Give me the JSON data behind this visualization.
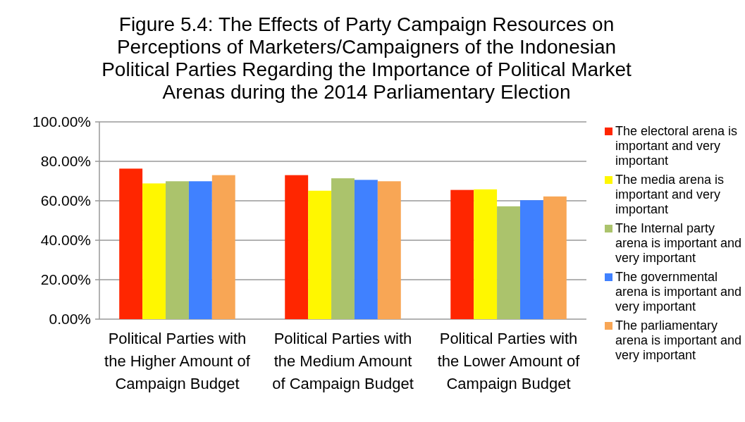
{
  "chart_data": {
    "type": "bar",
    "title": "Figure 5.4: The Effects of Party Campaign Resources on Perceptions of Marketers/Campaigners of the Indonesian Political Parties Regarding the Importance of Political Market Arenas during the 2014 Parliamentary Election",
    "categories": [
      "Political Parties with the Higher Amount of Campaign Budget",
      "Political Parties with the Medium Amount of Campaign Budget",
      "Political Parties with the Lower Amount of Campaign Budget"
    ],
    "series": [
      {
        "name": "The electoral arena is important and very important",
        "color": "#ff2600",
        "values": [
          76.3,
          73.0,
          65.5
        ]
      },
      {
        "name": "The media arena is important and very important",
        "color": "#fff700",
        "values": [
          68.8,
          65.1,
          65.8
        ]
      },
      {
        "name": "The Internal party arena is important and very important",
        "color": "#abc36c",
        "values": [
          69.9,
          71.4,
          57.2
        ]
      },
      {
        "name": "The governmental arena is important and very important",
        "color": "#4081ff",
        "values": [
          69.9,
          70.6,
          60.3
        ]
      },
      {
        "name": "The parliamentary arena is important and very important",
        "color": "#f8a655",
        "values": [
          73.0,
          69.9,
          62.2
        ]
      }
    ],
    "ylim": [
      0,
      100
    ],
    "yticks": [
      {
        "value": 0,
        "label": "0.00%"
      },
      {
        "value": 20,
        "label": "20.00%"
      },
      {
        "value": 40,
        "label": "40.00%"
      },
      {
        "value": 60,
        "label": "60.00%"
      },
      {
        "value": 80,
        "label": "80.00%"
      },
      {
        "value": 100,
        "label": "100.00%"
      }
    ],
    "grid": "y",
    "legend": "right"
  }
}
